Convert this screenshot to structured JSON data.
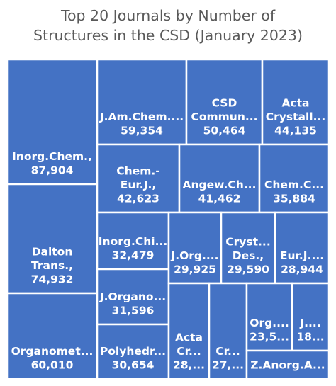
{
  "chart_data": {
    "type": "treemap",
    "title_lines": [
      "Top 20 Journals by Number of",
      "Structures in the CSD (January 2023)"
    ],
    "fill_color": "#4472C4",
    "border_color": "#ffffff",
    "items": [
      {
        "label": [
          "Inorg.Chem.,",
          "87,904"
        ],
        "value": 87904
      },
      {
        "label": [
          "Dalton",
          "Trans.,",
          "74,932"
        ],
        "value": 74932
      },
      {
        "label": [
          "Organomet...",
          "60,010"
        ],
        "value": 60010
      },
      {
        "label": [
          "J.Am.Chem....",
          "59,354"
        ],
        "value": 59354
      },
      {
        "label": [
          "CSD",
          "Commun...",
          "50,464"
        ],
        "value": 50464
      },
      {
        "label": [
          "Acta",
          "Crystall...",
          "44,135"
        ],
        "value": 44135
      },
      {
        "label": [
          "Chem.-",
          "Eur.J.,",
          "42,623"
        ],
        "value": 42623
      },
      {
        "label": [
          "Angew.Ch...",
          "41,462"
        ],
        "value": 41462
      },
      {
        "label": [
          "Chem.C...",
          "35,884"
        ],
        "value": 35884
      },
      {
        "label": [
          "Inorg.Chi...",
          "32,479"
        ],
        "value": 32479
      },
      {
        "label": [
          "J.Organo...",
          "31,596"
        ],
        "value": 31596
      },
      {
        "label": [
          "Polyhedr...",
          "30,654"
        ],
        "value": 30654
      },
      {
        "label": [
          "J.Org....",
          "29,925"
        ],
        "value": 29925
      },
      {
        "label": [
          "Cryst...",
          "Des.,",
          "29,590"
        ],
        "value": 29590
      },
      {
        "label": [
          "Eur.J....",
          "28,944"
        ],
        "value": 28944
      },
      {
        "label": [
          "Acta",
          "Cr...",
          "28,..."
        ],
        "value": 28300
      },
      {
        "label": [
          "Cr...",
          "27,..."
        ],
        "value": 27500
      },
      {
        "label": [
          "Org....",
          "23,5..."
        ],
        "value": 23500
      },
      {
        "label": [
          "J....",
          "18..."
        ],
        "value": 18500
      },
      {
        "label": [
          "Z.Anorg.A..."
        ],
        "value": 24000
      }
    ]
  }
}
